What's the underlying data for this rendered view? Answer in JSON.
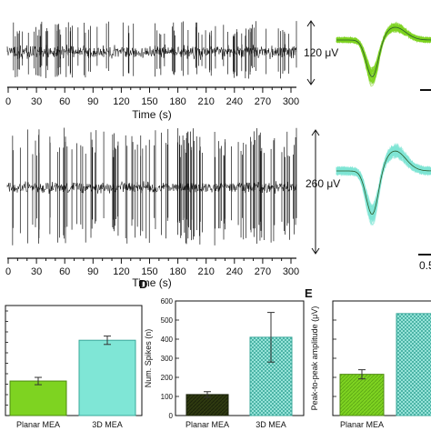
{
  "time_axis": {
    "label": "Time (s)",
    "ticks": [
      "0",
      "30",
      "60",
      "90",
      "120",
      "150",
      "180",
      "210",
      "240",
      "270",
      "300"
    ]
  },
  "scale_bars": {
    "top": "120 μV",
    "bottom": "260 μV",
    "bottom_time_partial": "0.5"
  },
  "panel_letters": {
    "D": "D",
    "E": "E"
  },
  "colors": {
    "trace": "#111111",
    "planar_mea": "#7ed321",
    "planar_mea_dark": "#2f3a10",
    "mea_3d": "#7fe6d6",
    "mea_3d_dark": "#7ec8c0",
    "waveform_top": "#7ed321",
    "waveform_bottom": "#7fe6d6"
  },
  "chart_data": [
    {
      "type": "line",
      "panel": "top-trace",
      "xlabel": "Time (s)",
      "ylabel": "",
      "xlim": [
        0,
        300
      ],
      "ticks": [
        0,
        30,
        60,
        90,
        120,
        150,
        180,
        210,
        240,
        270,
        300
      ],
      "scale_bar": "120 μV"
    },
    {
      "type": "line",
      "panel": "bottom-trace",
      "xlabel": "Time (s)",
      "ylabel": "",
      "xlim": [
        0,
        300
      ],
      "ticks": [
        0,
        30,
        60,
        90,
        120,
        150,
        180,
        210,
        240,
        270,
        300
      ],
      "scale_bar": "260 μV"
    },
    {
      "type": "bar",
      "panel": "C",
      "categories": [
        "Planar MEA",
        "3D MEA"
      ],
      "values": [
        0.33,
        0.72
      ],
      "errors": [
        0.035,
        0.04
      ],
      "xlabel": "",
      "ylabel": ""
    },
    {
      "type": "bar",
      "panel": "D",
      "categories": [
        "Planar MEA",
        "3D MEA"
      ],
      "values": [
        110,
        410
      ],
      "errors": [
        15,
        130
      ],
      "ylabel": "Num. Spikes (n)",
      "ylim": [
        0,
        600
      ],
      "yticks": [
        "0",
        "100",
        "200",
        "300",
        "400",
        "500",
        "600"
      ]
    },
    {
      "type": "bar",
      "panel": "E",
      "categories": [
        "Planar MEA",
        "3D MEA"
      ],
      "values": [
        0.36,
        0.89
      ],
      "errors": [
        0.04,
        0
      ],
      "ylabel": "Peak-to-peak amplitude (μV)"
    }
  ]
}
